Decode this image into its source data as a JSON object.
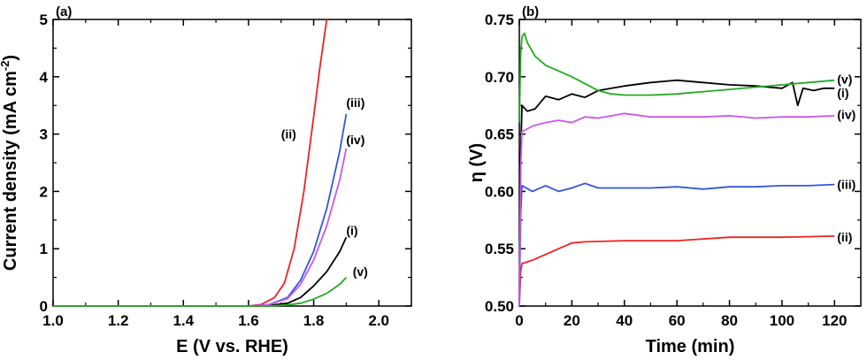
{
  "chart_data": [
    {
      "panel": "(a)",
      "type": "line",
      "xlabel": "E (V vs. RHE)",
      "ylabel_main": "Current density (mA cm",
      "ylabel_sup": "-2",
      "ylabel_end": ")",
      "xlim": [
        1.0,
        2.1
      ],
      "ylim": [
        0,
        5
      ],
      "xticks": [
        "1.0",
        "1.2",
        "1.4",
        "1.6",
        "1.8",
        "2.0"
      ],
      "yticks": [
        "0",
        "1",
        "2",
        "3",
        "4",
        "5"
      ],
      "series": [
        {
          "name": "(i)",
          "color": "#000000",
          "x": [
            1.0,
            1.6,
            1.66,
            1.72,
            1.76,
            1.8,
            1.84,
            1.88,
            1.9
          ],
          "y": [
            0,
            0,
            0.01,
            0.05,
            0.15,
            0.35,
            0.6,
            0.95,
            1.2
          ]
        },
        {
          "name": "(ii)",
          "color": "#ee2222",
          "x": [
            1.0,
            1.6,
            1.64,
            1.68,
            1.71,
            1.74,
            1.77,
            1.8,
            1.82,
            1.84
          ],
          "y": [
            0,
            0,
            0.03,
            0.15,
            0.4,
            1.0,
            2.0,
            3.3,
            4.2,
            5.0
          ]
        },
        {
          "name": "(iii)",
          "color": "#3355dd",
          "x": [
            1.0,
            1.6,
            1.66,
            1.72,
            1.76,
            1.8,
            1.84,
            1.88,
            1.9
          ],
          "y": [
            0,
            0,
            0.02,
            0.15,
            0.45,
            0.95,
            1.7,
            2.7,
            3.35
          ]
        },
        {
          "name": "(iv)",
          "color": "#cc55ee",
          "x": [
            1.0,
            1.6,
            1.66,
            1.72,
            1.76,
            1.8,
            1.84,
            1.88,
            1.9
          ],
          "y": [
            0,
            0,
            0.02,
            0.13,
            0.38,
            0.8,
            1.4,
            2.2,
            2.75
          ]
        },
        {
          "name": "(v)",
          "color": "#22aa22",
          "x": [
            1.0,
            1.66,
            1.72,
            1.76,
            1.8,
            1.84,
            1.88,
            1.9
          ],
          "y": [
            0,
            0,
            0.02,
            0.05,
            0.12,
            0.22,
            0.38,
            0.5
          ]
        }
      ],
      "labels": [
        {
          "text": "(i)",
          "x": 1.9,
          "y": 1.32
        },
        {
          "text": "(ii)",
          "x": 1.7,
          "y": 3.0
        },
        {
          "text": "(iii)",
          "x": 1.9,
          "y": 3.55
        },
        {
          "text": "(iv)",
          "x": 1.9,
          "y": 2.9
        },
        {
          "text": "(v)",
          "x": 1.92,
          "y": 0.6
        }
      ]
    },
    {
      "panel": "(b)",
      "type": "line",
      "xlabel": "Time (min)",
      "ylabel": "η (V)",
      "xlim": [
        0,
        130
      ],
      "ylim": [
        0.5,
        0.75
      ],
      "xticks": [
        "0",
        "20",
        "40",
        "60",
        "80",
        "100",
        "120"
      ],
      "yticks": [
        "0.50",
        "0.55",
        "0.60",
        "0.65",
        "0.70",
        "0.75"
      ],
      "series": [
        {
          "name": "(i)",
          "color": "#000000",
          "x": [
            0,
            0.5,
            1,
            3,
            6,
            10,
            15,
            20,
            25,
            30,
            40,
            50,
            60,
            70,
            80,
            90,
            100,
            104,
            106,
            108,
            112,
            116,
            120
          ],
          "y": [
            0.5,
            0.63,
            0.675,
            0.67,
            0.672,
            0.683,
            0.68,
            0.685,
            0.682,
            0.688,
            0.692,
            0.695,
            0.697,
            0.695,
            0.693,
            0.692,
            0.69,
            0.695,
            0.675,
            0.69,
            0.688,
            0.69,
            0.69
          ]
        },
        {
          "name": "(ii)",
          "color": "#ee2222",
          "x": [
            0,
            0.5,
            1,
            5,
            10,
            15,
            20,
            25,
            40,
            60,
            80,
            100,
            120
          ],
          "y": [
            0.5,
            0.53,
            0.537,
            0.54,
            0.545,
            0.55,
            0.555,
            0.556,
            0.557,
            0.557,
            0.56,
            0.56,
            0.561
          ]
        },
        {
          "name": "(iii)",
          "color": "#3355dd",
          "x": [
            0,
            0.5,
            1,
            5,
            10,
            15,
            20,
            25,
            30,
            40,
            50,
            60,
            70,
            80,
            90,
            100,
            110,
            120
          ],
          "y": [
            0.5,
            0.58,
            0.605,
            0.6,
            0.605,
            0.6,
            0.603,
            0.607,
            0.603,
            0.603,
            0.603,
            0.604,
            0.602,
            0.604,
            0.604,
            0.605,
            0.605,
            0.606
          ]
        },
        {
          "name": "(iv)",
          "color": "#cc55ee",
          "x": [
            0,
            0.5,
            1,
            5,
            10,
            15,
            20,
            25,
            30,
            40,
            50,
            60,
            70,
            80,
            90,
            100,
            110,
            120
          ],
          "y": [
            0.5,
            0.62,
            0.652,
            0.657,
            0.66,
            0.662,
            0.66,
            0.665,
            0.664,
            0.668,
            0.665,
            0.665,
            0.665,
            0.666,
            0.664,
            0.665,
            0.665,
            0.666
          ]
        },
        {
          "name": "(v)",
          "color": "#22aa22",
          "x": [
            0,
            0.5,
            1,
            2,
            3,
            6,
            10,
            15,
            20,
            25,
            30,
            35,
            40,
            50,
            60,
            70,
            80,
            90,
            100,
            110,
            120
          ],
          "y": [
            0.66,
            0.72,
            0.735,
            0.738,
            0.73,
            0.718,
            0.71,
            0.705,
            0.7,
            0.694,
            0.688,
            0.685,
            0.684,
            0.684,
            0.685,
            0.687,
            0.689,
            0.691,
            0.693,
            0.695,
            0.697
          ]
        }
      ],
      "labels": [
        {
          "text": "(v)",
          "x": 121,
          "y": 0.698
        },
        {
          "text": "(i)",
          "x": 121,
          "y": 0.686
        },
        {
          "text": "(iv)",
          "x": 121,
          "y": 0.667
        },
        {
          "text": "(iii)",
          "x": 121,
          "y": 0.606
        },
        {
          "text": "(ii)",
          "x": 121,
          "y": 0.56
        }
      ]
    }
  ]
}
